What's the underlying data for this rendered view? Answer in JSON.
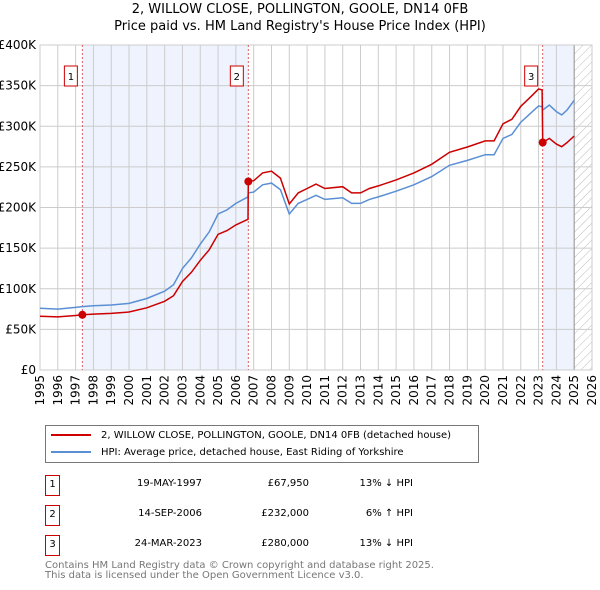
{
  "title": "2, WILLOW CLOSE, POLLINGTON, GOOLE, DN14 0FB",
  "subtitle": "Price paid vs. HM Land Registry's House Price Index (HPI)",
  "chart_data": {
    "type": "line",
    "title": "2, WILLOW CLOSE, POLLINGTON, GOOLE, DN14 0FB",
    "subtitle": "Price paid vs. HM Land Registry's House Price Index (HPI)",
    "xlim": [
      1995,
      2026
    ],
    "ylim": [
      0,
      400000
    ],
    "x_ticks": [
      "1995",
      "1996",
      "1997",
      "1998",
      "1999",
      "2000",
      "2001",
      "2002",
      "2003",
      "2004",
      "2005",
      "2006",
      "2007",
      "2008",
      "2009",
      "2010",
      "2011",
      "2012",
      "2013",
      "2014",
      "2015",
      "2016",
      "2017",
      "2018",
      "2019",
      "2020",
      "2021",
      "2022",
      "2023",
      "2024",
      "2025",
      "2026"
    ],
    "y_ticks": [
      {
        "v": 0,
        "label": "£0"
      },
      {
        "v": 50000,
        "label": "£50K"
      },
      {
        "v": 100000,
        "label": "£100K"
      },
      {
        "v": 150000,
        "label": "£150K"
      },
      {
        "v": 200000,
        "label": "£200K"
      },
      {
        "v": 250000,
        "label": "£250K"
      },
      {
        "v": 300000,
        "label": "£300K"
      },
      {
        "v": 350000,
        "label": "£350K"
      },
      {
        "v": 400000,
        "label": "£400K"
      }
    ],
    "grid": true,
    "shaded_regions": [
      [
        1997.38,
        2006.7
      ],
      [
        2023.23,
        2025.0
      ]
    ],
    "forecast_hatch_from": 2025.0,
    "series": [
      {
        "name": "2, WILLOW CLOSE, POLLINGTON, GOOLE, DN14 0FB (detached house)",
        "color": "#cc0000",
        "x": [
          1995,
          1996,
          1997,
          1997.38,
          1998,
          1999,
          2000,
          2001,
          2002,
          2002.5,
          2003,
          2003.5,
          2004,
          2004.5,
          2005,
          2005.5,
          2006,
          2006.68,
          2006.7,
          2007,
          2007.5,
          2008,
          2008.5,
          2009,
          2009.5,
          2010,
          2010.5,
          2011,
          2012,
          2012.5,
          2013,
          2013.5,
          2014,
          2015,
          2016,
          2017,
          2018,
          2019,
          2020,
          2020.5,
          2021,
          2021.5,
          2022,
          2022.5,
          2023,
          2023.2,
          2023.23,
          2023.6,
          2024,
          2024.3,
          2024.6,
          2025
        ],
        "y": [
          66200,
          65300,
          67100,
          67950,
          68800,
          69700,
          71400,
          76600,
          84500,
          91500,
          108900,
          120200,
          135000,
          148000,
          167000,
          171600,
          178600,
          185500,
          232000,
          233000,
          242600,
          244700,
          236200,
          204300,
          218000,
          223400,
          228800,
          223400,
          225600,
          218000,
          218000,
          223400,
          226600,
          234000,
          242600,
          253200,
          268000,
          274500,
          282000,
          282000,
          303000,
          308600,
          324500,
          335000,
          345800,
          344700,
          280000,
          285000,
          278000,
          274800,
          280000,
          288000
        ]
      },
      {
        "name": "HPI: Average price, detached house, East Riding of Yorkshire",
        "color": "#5b8fd4",
        "x": [
          1995,
          1996,
          1997,
          1997.38,
          1998,
          1999,
          2000,
          2001,
          2002,
          2002.5,
          2003,
          2003.5,
          2004,
          2004.5,
          2005,
          2005.5,
          2006,
          2006.68,
          2006.7,
          2007,
          2007.5,
          2008,
          2008.5,
          2009,
          2009.5,
          2010,
          2010.5,
          2011,
          2012,
          2012.5,
          2013,
          2013.5,
          2014,
          2015,
          2016,
          2017,
          2018,
          2019,
          2020,
          2020.5,
          2021,
          2021.5,
          2022,
          2022.5,
          2023,
          2023.2,
          2023.23,
          2023.6,
          2024,
          2024.3,
          2024.6,
          2025
        ],
        "y": [
          76000,
          75000,
          77000,
          78000,
          79000,
          80000,
          82000,
          88000,
          97000,
          105000,
          125000,
          138000,
          155000,
          170000,
          192000,
          197000,
          205000,
          213000,
          218000,
          219000,
          228000,
          230000,
          222000,
          192000,
          205000,
          210000,
          215000,
          210000,
          212000,
          205000,
          205000,
          210000,
          213000,
          220000,
          228000,
          238000,
          252000,
          258000,
          265000,
          265000,
          285000,
          290000,
          305000,
          315000,
          325000,
          324000,
          320000,
          326000,
          318000,
          314000,
          320000,
          332000
        ]
      }
    ],
    "sales": [
      {
        "n": "1",
        "x": 1997.38,
        "y": 67950,
        "date": "19-MAY-1997",
        "price": "£67,950",
        "hpi": "13% ↓ HPI"
      },
      {
        "n": "2",
        "x": 2006.7,
        "y": 232000,
        "date": "14-SEP-2006",
        "price": "£232,000",
        "hpi": "6% ↑ HPI"
      },
      {
        "n": "3",
        "x": 2023.23,
        "y": 280000,
        "date": "24-MAR-2023",
        "price": "£280,000",
        "hpi": "13% ↓ HPI"
      }
    ]
  },
  "legend": {
    "property": "2, WILLOW CLOSE, POLLINGTON, GOOLE, DN14 0FB (detached house)",
    "hpi": "HPI: Average price, detached house, East Riding of Yorkshire"
  },
  "footer": {
    "line1": "Contains HM Land Registry data © Crown copyright and database right 2025.",
    "line2": "This data is licensed under the Open Government Licence v3.0."
  }
}
